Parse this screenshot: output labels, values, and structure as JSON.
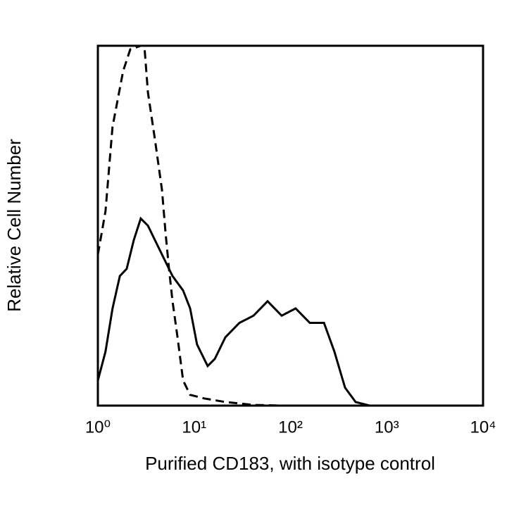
{
  "chart_data": {
    "type": "line",
    "xlabel": "Purified CD183, with isotype control",
    "ylabel": "Relative Cell Number",
    "xscale": "log",
    "xlim": [
      1,
      10000
    ],
    "ylim": [
      0,
      100
    ],
    "xticks": [
      {
        "value": 1,
        "label": "10⁰"
      },
      {
        "value": 10,
        "label": "10¹"
      },
      {
        "value": 100,
        "label": "10²"
      },
      {
        "value": 1000,
        "label": "10³"
      },
      {
        "value": 10000,
        "label": "10⁴"
      }
    ],
    "series": [
      {
        "color": "#000000",
        "dash": false,
        "x": [
          1,
          1.2,
          1.42,
          1.69,
          1.99,
          2.36,
          2.79,
          3.31,
          3.91,
          4.63,
          5.96,
          7.67,
          9.08,
          10.7,
          13.8,
          16.4,
          21.1,
          29.5,
          41.3,
          57.9,
          81.0,
          113,
          159,
          223,
          286,
          369,
          475,
          665
        ],
        "values": [
          7,
          15,
          27,
          36,
          38,
          46,
          52,
          50,
          46,
          42,
          36,
          32,
          27,
          17,
          11,
          13,
          19,
          23,
          25,
          29,
          25,
          27,
          23,
          23,
          15,
          5,
          1,
          0
        ]
      },
      {
        "color": "#000000",
        "dash": true,
        "x": [
          1,
          1.2,
          1.42,
          1.83,
          2.17,
          2.79,
          3.04,
          3.31,
          3.91,
          4.63,
          5.04,
          5.48,
          5.96,
          6.71,
          7.67,
          9.08,
          12.7,
          21.1,
          41.3,
          81.0
        ],
        "values": [
          42,
          54,
          77.5,
          93,
          99,
          100,
          100,
          87,
          74,
          60,
          48,
          38,
          29,
          19,
          7,
          3,
          2,
          1,
          0.2,
          0
        ]
      }
    ]
  }
}
